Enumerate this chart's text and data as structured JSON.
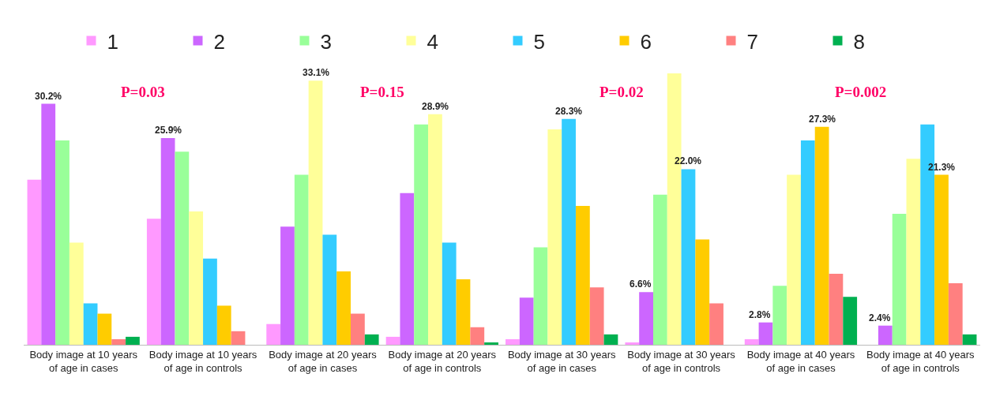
{
  "chart_data": {
    "type": "bar",
    "categories": [
      "Body image at 10 years of age in cases",
      "Body image at 10 years of age in controls",
      "Body image at 20 years of age in cases",
      "Body image at 20 years of age in controls",
      "Body image at 30 years of age in cases",
      "Body image at 30 years of age in controls",
      "Body image at 40 years of age in cases",
      "Body image at 40 years of age in controls"
    ],
    "series": [
      {
        "name": "1",
        "color": "#ff99ff",
        "values": [
          20.7,
          15.8,
          2.6,
          1.0,
          0.7,
          0.3,
          0.7,
          0
        ]
      },
      {
        "name": "2",
        "color": "#cc66ff",
        "values": [
          30.2,
          25.9,
          14.8,
          19.0,
          5.9,
          6.6,
          2.8,
          2.4
        ],
        "value_labels": [
          "30.2%",
          "25.9%",
          null,
          null,
          null,
          "6.6%",
          "2.8%",
          "2.4%"
        ]
      },
      {
        "name": "3",
        "color": "#99ff99",
        "values": [
          25.6,
          24.2,
          21.3,
          27.6,
          12.2,
          18.8,
          7.4,
          16.4
        ]
      },
      {
        "name": "4",
        "color": "#ffff99",
        "values": [
          12.8,
          16.7,
          33.1,
          28.9,
          27.0,
          34.0,
          21.3,
          23.3
        ],
        "value_labels": [
          null,
          null,
          "33.1%",
          "28.9%",
          null,
          null,
          null,
          null
        ]
      },
      {
        "name": "5",
        "color": "#33ccff",
        "values": [
          5.2,
          10.8,
          13.8,
          12.8,
          28.3,
          22.0,
          25.6,
          27.6
        ],
        "value_labels": [
          null,
          null,
          null,
          null,
          "28.3%",
          "22.0%",
          null,
          null
        ]
      },
      {
        "name": "6",
        "color": "#ffcc00",
        "values": [
          3.9,
          4.9,
          9.2,
          8.2,
          17.4,
          13.2,
          27.3,
          21.3
        ],
        "value_labels": [
          null,
          null,
          null,
          null,
          null,
          null,
          "27.3%",
          "21.3%"
        ]
      },
      {
        "name": "7",
        "color": "#ff8080",
        "values": [
          0.7,
          1.7,
          3.9,
          2.2,
          7.2,
          5.2,
          8.9,
          7.7
        ]
      },
      {
        "name": "8",
        "color": "#00b050",
        "values": [
          1.0,
          0,
          1.3,
          0.3,
          1.3,
          0,
          6.0,
          1.3
        ]
      }
    ],
    "annotations": [
      "P=0.03",
      "P=0.15",
      "P=0.02",
      "P=0.002"
    ],
    "tick_labels": "x",
    "legend": "top"
  }
}
